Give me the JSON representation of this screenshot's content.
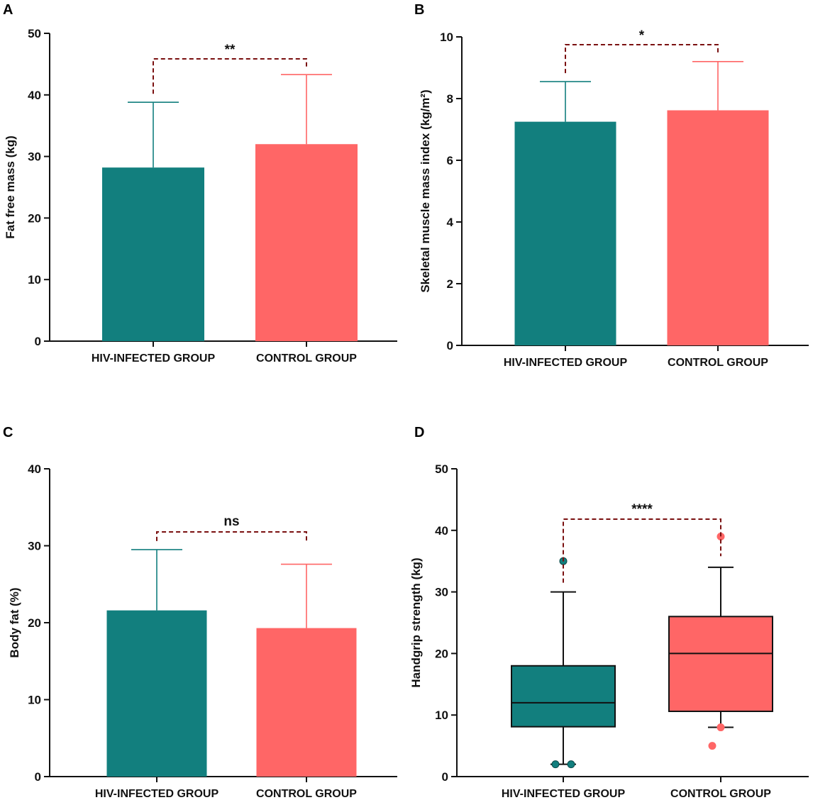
{
  "colors": {
    "hiv": "#127f7e",
    "control": "#ff6666",
    "bracket": "#7a1010",
    "axis": "#111111"
  },
  "chart_data": [
    {
      "panel": "A",
      "type": "bar",
      "categories": [
        "HIV-INFECTED GROUP",
        "CONTROL GROUP"
      ],
      "values": [
        28.2,
        32.0
      ],
      "error_upper": [
        38.8,
        43.3
      ],
      "ylabel": "Fat free mass (kg)",
      "ylim": [
        0,
        50
      ],
      "yticks": [
        0,
        10,
        20,
        30,
        40,
        50
      ],
      "significance": "**"
    },
    {
      "panel": "B",
      "type": "bar",
      "categories": [
        "HIV-INFECTED GROUP",
        "CONTROL GROUP"
      ],
      "values": [
        7.25,
        7.62
      ],
      "error_upper": [
        8.55,
        9.2
      ],
      "ylabel": "Skeletal muscle mass index (kg/m²)",
      "ylim": [
        0,
        10
      ],
      "yticks": [
        0,
        2,
        4,
        6,
        8,
        10
      ],
      "significance": "*"
    },
    {
      "panel": "C",
      "type": "bar",
      "categories": [
        "HIV-INFECTED GROUP",
        "CONTROL GROUP"
      ],
      "values": [
        21.6,
        19.3
      ],
      "error_upper": [
        29.5,
        27.6
      ],
      "ylabel": "Body fat (%)",
      "ylim": [
        0,
        40
      ],
      "yticks": [
        0,
        10,
        20,
        30,
        40
      ],
      "significance": "ns"
    },
    {
      "panel": "D",
      "type": "box",
      "categories": [
        "HIV-INFECTED GROUP",
        "CONTROL GROUP"
      ],
      "boxes": [
        {
          "whisker_low": 2,
          "q1": 8.1,
          "median": 12,
          "q3": 18,
          "whisker_high": 30,
          "outliers": [
            35,
            2,
            2
          ]
        },
        {
          "whisker_low": 8,
          "q1": 10.6,
          "median": 20,
          "q3": 26,
          "whisker_high": 34,
          "outliers": [
            39,
            8,
            5
          ]
        }
      ],
      "ylabel": "Handgrip strength (kg)",
      "ylim": [
        0,
        50
      ],
      "yticks": [
        0,
        10,
        20,
        30,
        40,
        50
      ],
      "significance": "****"
    }
  ]
}
